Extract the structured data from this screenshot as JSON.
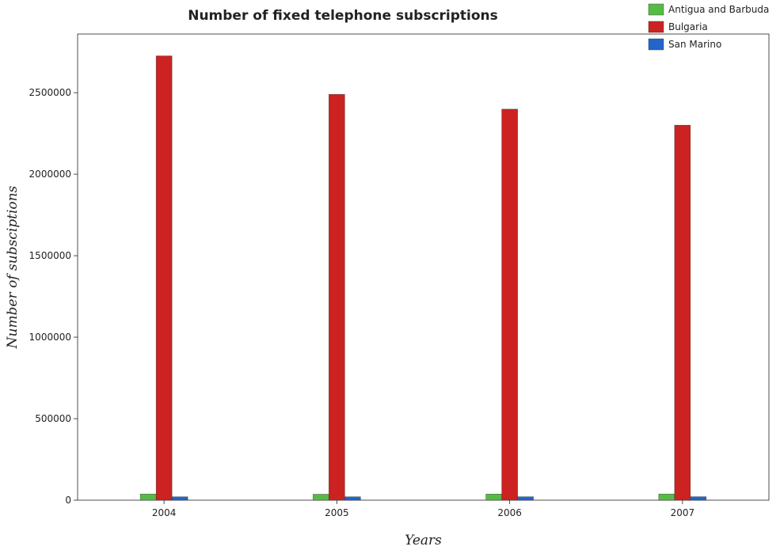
{
  "chart_data": {
    "type": "bar",
    "title": "Number of fixed telephone subscriptions",
    "xlabel": "Years",
    "ylabel": "Number of subsciptions",
    "categories": [
      "2004",
      "2005",
      "2006",
      "2007"
    ],
    "series": [
      {
        "name": "Antigua and Barbuda",
        "color": "#55bb44",
        "values": [
          38000,
          36500,
          37500,
          38000
        ]
      },
      {
        "name": "Bulgaria",
        "color": "#cc2222",
        "values": [
          2726000,
          2490000,
          2399000,
          2301000
        ]
      },
      {
        "name": "San Marino",
        "color": "#2266cc",
        "values": [
          20900,
          21000,
          21200,
          21400
        ]
      }
    ],
    "ylim": [
      0,
      2860000
    ],
    "yticks": [
      0,
      500000,
      1000000,
      1500000,
      2000000,
      2500000
    ],
    "ytick_labels": [
      "0",
      "500000",
      "1000000",
      "1500000",
      "2000000",
      "2500000"
    ],
    "grid": false,
    "legend_position": "top-right"
  }
}
